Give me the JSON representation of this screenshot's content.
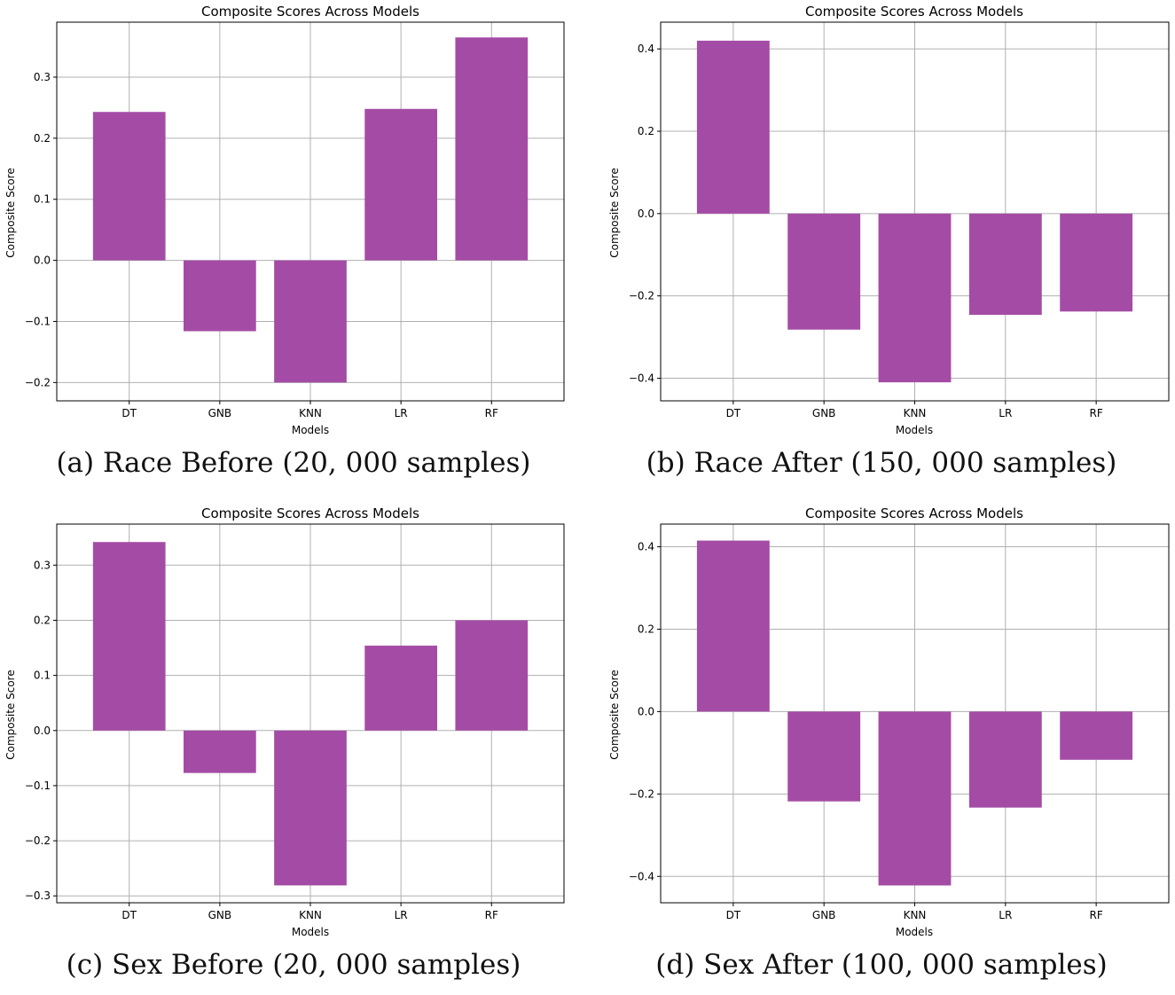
{
  "figure": {
    "colors": {
      "bar": "#a44ca5",
      "grid": "#b0b0b0",
      "axis": "#000000"
    }
  },
  "chart_data": [
    {
      "id": "a",
      "type": "bar",
      "title": "Composite Scores Across Models",
      "xlabel": "Models",
      "ylabel": "Composite Score",
      "caption": "(a) Race Before (20, 000 samples)",
      "categories": [
        "DT",
        "GNB",
        "KNN",
        "LR",
        "RF"
      ],
      "values": [
        0.243,
        -0.116,
        -0.2,
        0.248,
        0.365
      ],
      "ylim": [
        -0.23,
        0.39
      ],
      "yticks": [
        -0.2,
        -0.1,
        0.0,
        0.1,
        0.2,
        0.3
      ],
      "ytick_labels": [
        "−0.2",
        "−0.1",
        "0.0",
        "0.1",
        "0.2",
        "0.3"
      ],
      "grid": true
    },
    {
      "id": "b",
      "type": "bar",
      "title": "Composite Scores Across Models",
      "xlabel": "Models",
      "ylabel": "Composite Score",
      "caption": "(b) Race After (150, 000 samples)",
      "categories": [
        "DT",
        "GNB",
        "KNN",
        "LR",
        "RF"
      ],
      "values": [
        0.42,
        -0.282,
        -0.41,
        -0.246,
        -0.238
      ],
      "ylim": [
        -0.455,
        0.465
      ],
      "yticks": [
        -0.4,
        -0.2,
        0.0,
        0.2,
        0.4
      ],
      "ytick_labels": [
        "−0.4",
        "−0.2",
        "0.0",
        "0.2",
        "0.4"
      ],
      "grid": true
    },
    {
      "id": "c",
      "type": "bar",
      "title": "Composite Scores Across Models",
      "xlabel": "Models",
      "ylabel": "Composite Score",
      "caption": "(c) Sex Before (20, 000 samples)",
      "categories": [
        "DT",
        "GNB",
        "KNN",
        "LR",
        "RF"
      ],
      "values": [
        0.342,
        -0.077,
        -0.281,
        0.154,
        0.2
      ],
      "ylim": [
        -0.3125,
        0.3745
      ],
      "yticks": [
        -0.3,
        -0.2,
        -0.1,
        0.0,
        0.1,
        0.2,
        0.3
      ],
      "ytick_labels": [
        "−0.3",
        "−0.2",
        "−0.1",
        "0.0",
        "0.1",
        "0.2",
        "0.3"
      ],
      "grid": true
    },
    {
      "id": "d",
      "type": "bar",
      "title": "Composite Scores Across Models",
      "xlabel": "Models",
      "ylabel": "Composite Score",
      "caption": "(d) Sex After (100, 000 samples)",
      "categories": [
        "DT",
        "GNB",
        "KNN",
        "LR",
        "RF"
      ],
      "values": [
        0.415,
        -0.218,
        -0.422,
        -0.233,
        -0.117
      ],
      "ylim": [
        -0.464,
        0.455
      ],
      "yticks": [
        -0.4,
        -0.2,
        0.0,
        0.2,
        0.4
      ],
      "ytick_labels": [
        "−0.4",
        "−0.2",
        "0.0",
        "0.2",
        "0.4"
      ],
      "grid": true
    }
  ]
}
